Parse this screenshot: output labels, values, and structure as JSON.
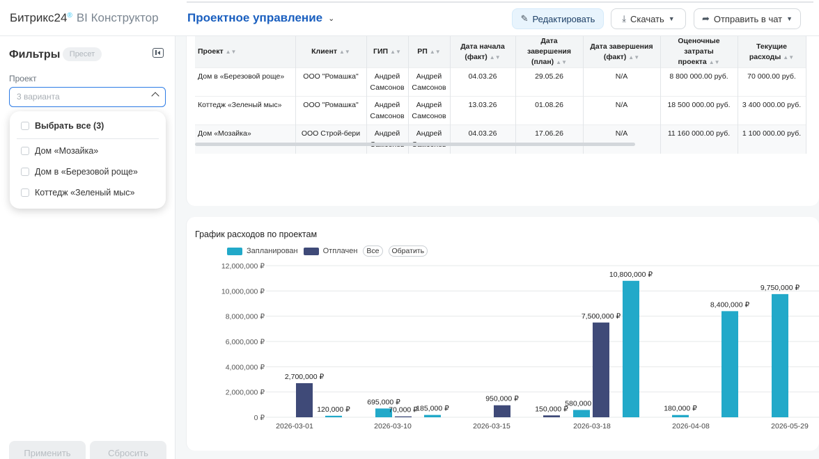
{
  "header": {
    "brand_main": "Битрикс24",
    "brand_sup": "®",
    "brand_product": "BI Конструктор",
    "title": "Проектное управление",
    "edit_label": "Редактировать",
    "download_label": "Скачать",
    "send_label": "Отправить в чат"
  },
  "sidebar": {
    "title": "Фильтры",
    "preset_badge": "Пресет",
    "project_label": "Проект",
    "project_placeholder": "3 варианта",
    "dropdown": {
      "select_all": "Выбрать все (3)",
      "options": [
        "Дом «Мозайка»",
        "Дом в «Березовой роще»",
        "Коттедж «Зеленый мыс»"
      ]
    },
    "apply_label": "Применить",
    "reset_label": "Сбросить"
  },
  "table": {
    "columns": [
      "Проект",
      "Клиент",
      "ГИП",
      "РП",
      "Дата начала (факт)",
      "Дата завершения (план)",
      "Дата завершения (факт)",
      "Оценочные затраты проекта",
      "Текущие расходы"
    ],
    "rows": [
      [
        "Дом в «Березовой роще»",
        "ООО \"Ромашка\"",
        "Андрей Самсонов",
        "Андрей Самсонов",
        "04.03.26",
        "29.05.26",
        "N/A",
        "8 800 000.00 руб.",
        "70 000.00 руб."
      ],
      [
        "Коттедж «Зеленый мыс»",
        "ООО \"Ромашка\"",
        "Андрей Самсонов",
        "Андрей Самсонов",
        "13.03.26",
        "01.08.26",
        "N/A",
        "18 500 000.00 руб.",
        "3 400 000.00 руб."
      ],
      [
        "Дом «Мозайка»",
        "ООО Строй-бери",
        "Андрей Самсонов",
        "Андрей Самсонов",
        "04.03.26",
        "17.06.26",
        "N/A",
        "11 160 000.00 руб.",
        "1 100 000.00 руб."
      ]
    ]
  },
  "chart": {
    "title": "График расходов по проектам",
    "legend_all": "Все",
    "legend_invert": "Обратить",
    "colors": {
      "planned": "#22a9c9",
      "paid": "#3f4a78"
    }
  },
  "chart_data": {
    "type": "bar",
    "title": "График расходов по проектам",
    "ylim": [
      0,
      12000000
    ],
    "yticks": [
      0,
      2000000,
      4000000,
      6000000,
      8000000,
      10000000,
      12000000
    ],
    "ytick_labels": [
      "0 ₽",
      "2,000,000 ₽",
      "4,000,000 ₽",
      "6,000,000 ₽",
      "8,000,000 ₽",
      "10,000,000 ₽",
      "12,000,000 ₽"
    ],
    "xtick_labels": [
      "2026-03-01",
      "2026-03-10",
      "2026-03-15",
      "2026-03-18",
      "2026-04-08",
      "2026-05-29"
    ],
    "series": [
      {
        "name": "Запланирован",
        "color": "#22a9c9"
      },
      {
        "name": "Отплачен",
        "color": "#3f4a78"
      }
    ],
    "bars": [
      {
        "series": "Отплачен",
        "value": 2700000,
        "label": "2,700,000 ₽"
      },
      {
        "series": "Запланирован",
        "value": 120000,
        "label": "120,000 ₽"
      },
      {
        "series": "Запланирован",
        "value": 695000,
        "label": "695,000 ₽"
      },
      {
        "series": "Отплачен",
        "value": 70000,
        "label": "70,000 ₽"
      },
      {
        "series": "Запланирован",
        "value": 185000,
        "label": "185,000 ₽"
      },
      {
        "series": "Отплачен",
        "value": 950000,
        "label": "950,000 ₽"
      },
      {
        "series": "Отплачен",
        "value": 150000,
        "label": "150,000 ₽"
      },
      {
        "series": "Запланирован",
        "value": 580000,
        "label": "580,000 ₽"
      },
      {
        "series": "Отплачен",
        "value": 7500000,
        "label": "7,500,000 ₽"
      },
      {
        "series": "Запланирован",
        "value": 10800000,
        "label": "10,800,000 ₽"
      },
      {
        "series": "Запланирован",
        "value": 180000,
        "label": "180,000 ₽"
      },
      {
        "series": "Запланирован",
        "value": 8400000,
        "label": "8,400,000 ₽"
      },
      {
        "series": "Запланирован",
        "value": 9750000,
        "label": "9,750,000 ₽"
      }
    ]
  }
}
